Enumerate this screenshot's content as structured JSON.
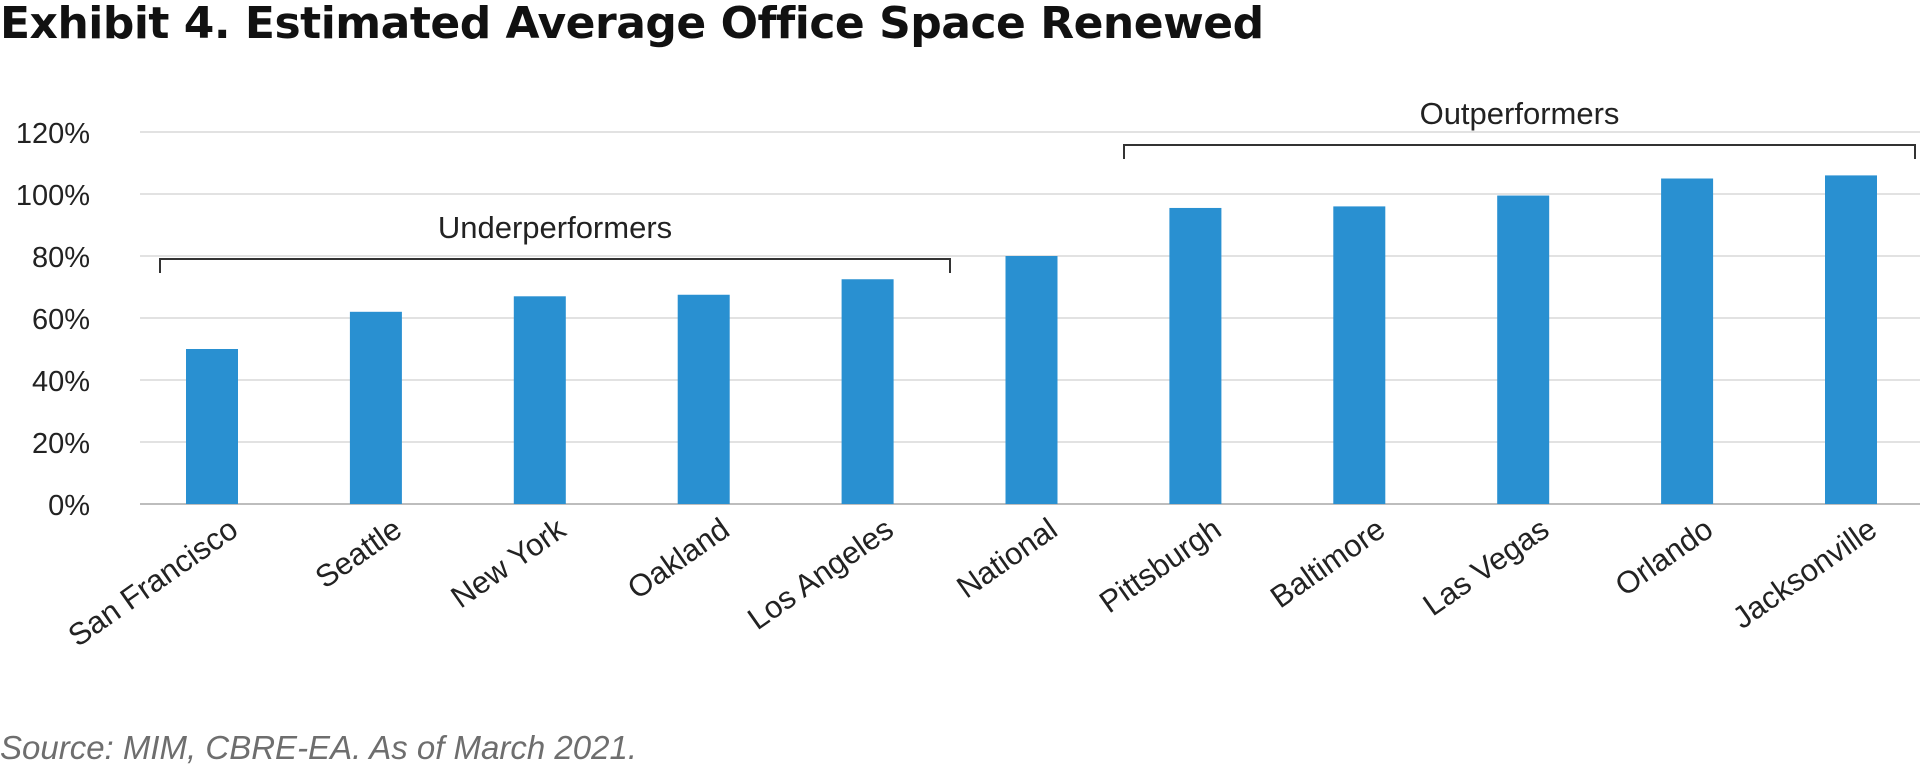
{
  "chart_data": {
    "type": "bar",
    "title": "Exhibit 4. Estimated Average Office Space Renewed",
    "xlabel": "",
    "ylabel": "",
    "categories": [
      "San Francisco",
      "Seattle",
      "New York",
      "Oakland",
      "Los Angeles",
      "National",
      "Pittsburgh",
      "Baltimore",
      "Las Vegas",
      "Orlando",
      "Jacksonville"
    ],
    "values": [
      50,
      62,
      67,
      67.5,
      72.5,
      80,
      95.5,
      96,
      99.5,
      105,
      106
    ],
    "ylim": [
      0,
      120
    ],
    "yticks": [
      "0%",
      "20%",
      "40%",
      "60%",
      "80%",
      "100%",
      "120%"
    ],
    "grid": true,
    "bar_color": "#2990d1",
    "annotations": [
      {
        "label": "Underperformers",
        "from_category": "San Francisco",
        "to_category": "Los Angeles"
      },
      {
        "label": "Outperformers",
        "from_category": "Pittsburgh",
        "to_category": "Jacksonville"
      }
    ]
  },
  "source": "Source: MIM, CBRE-EA. As of March 2021."
}
